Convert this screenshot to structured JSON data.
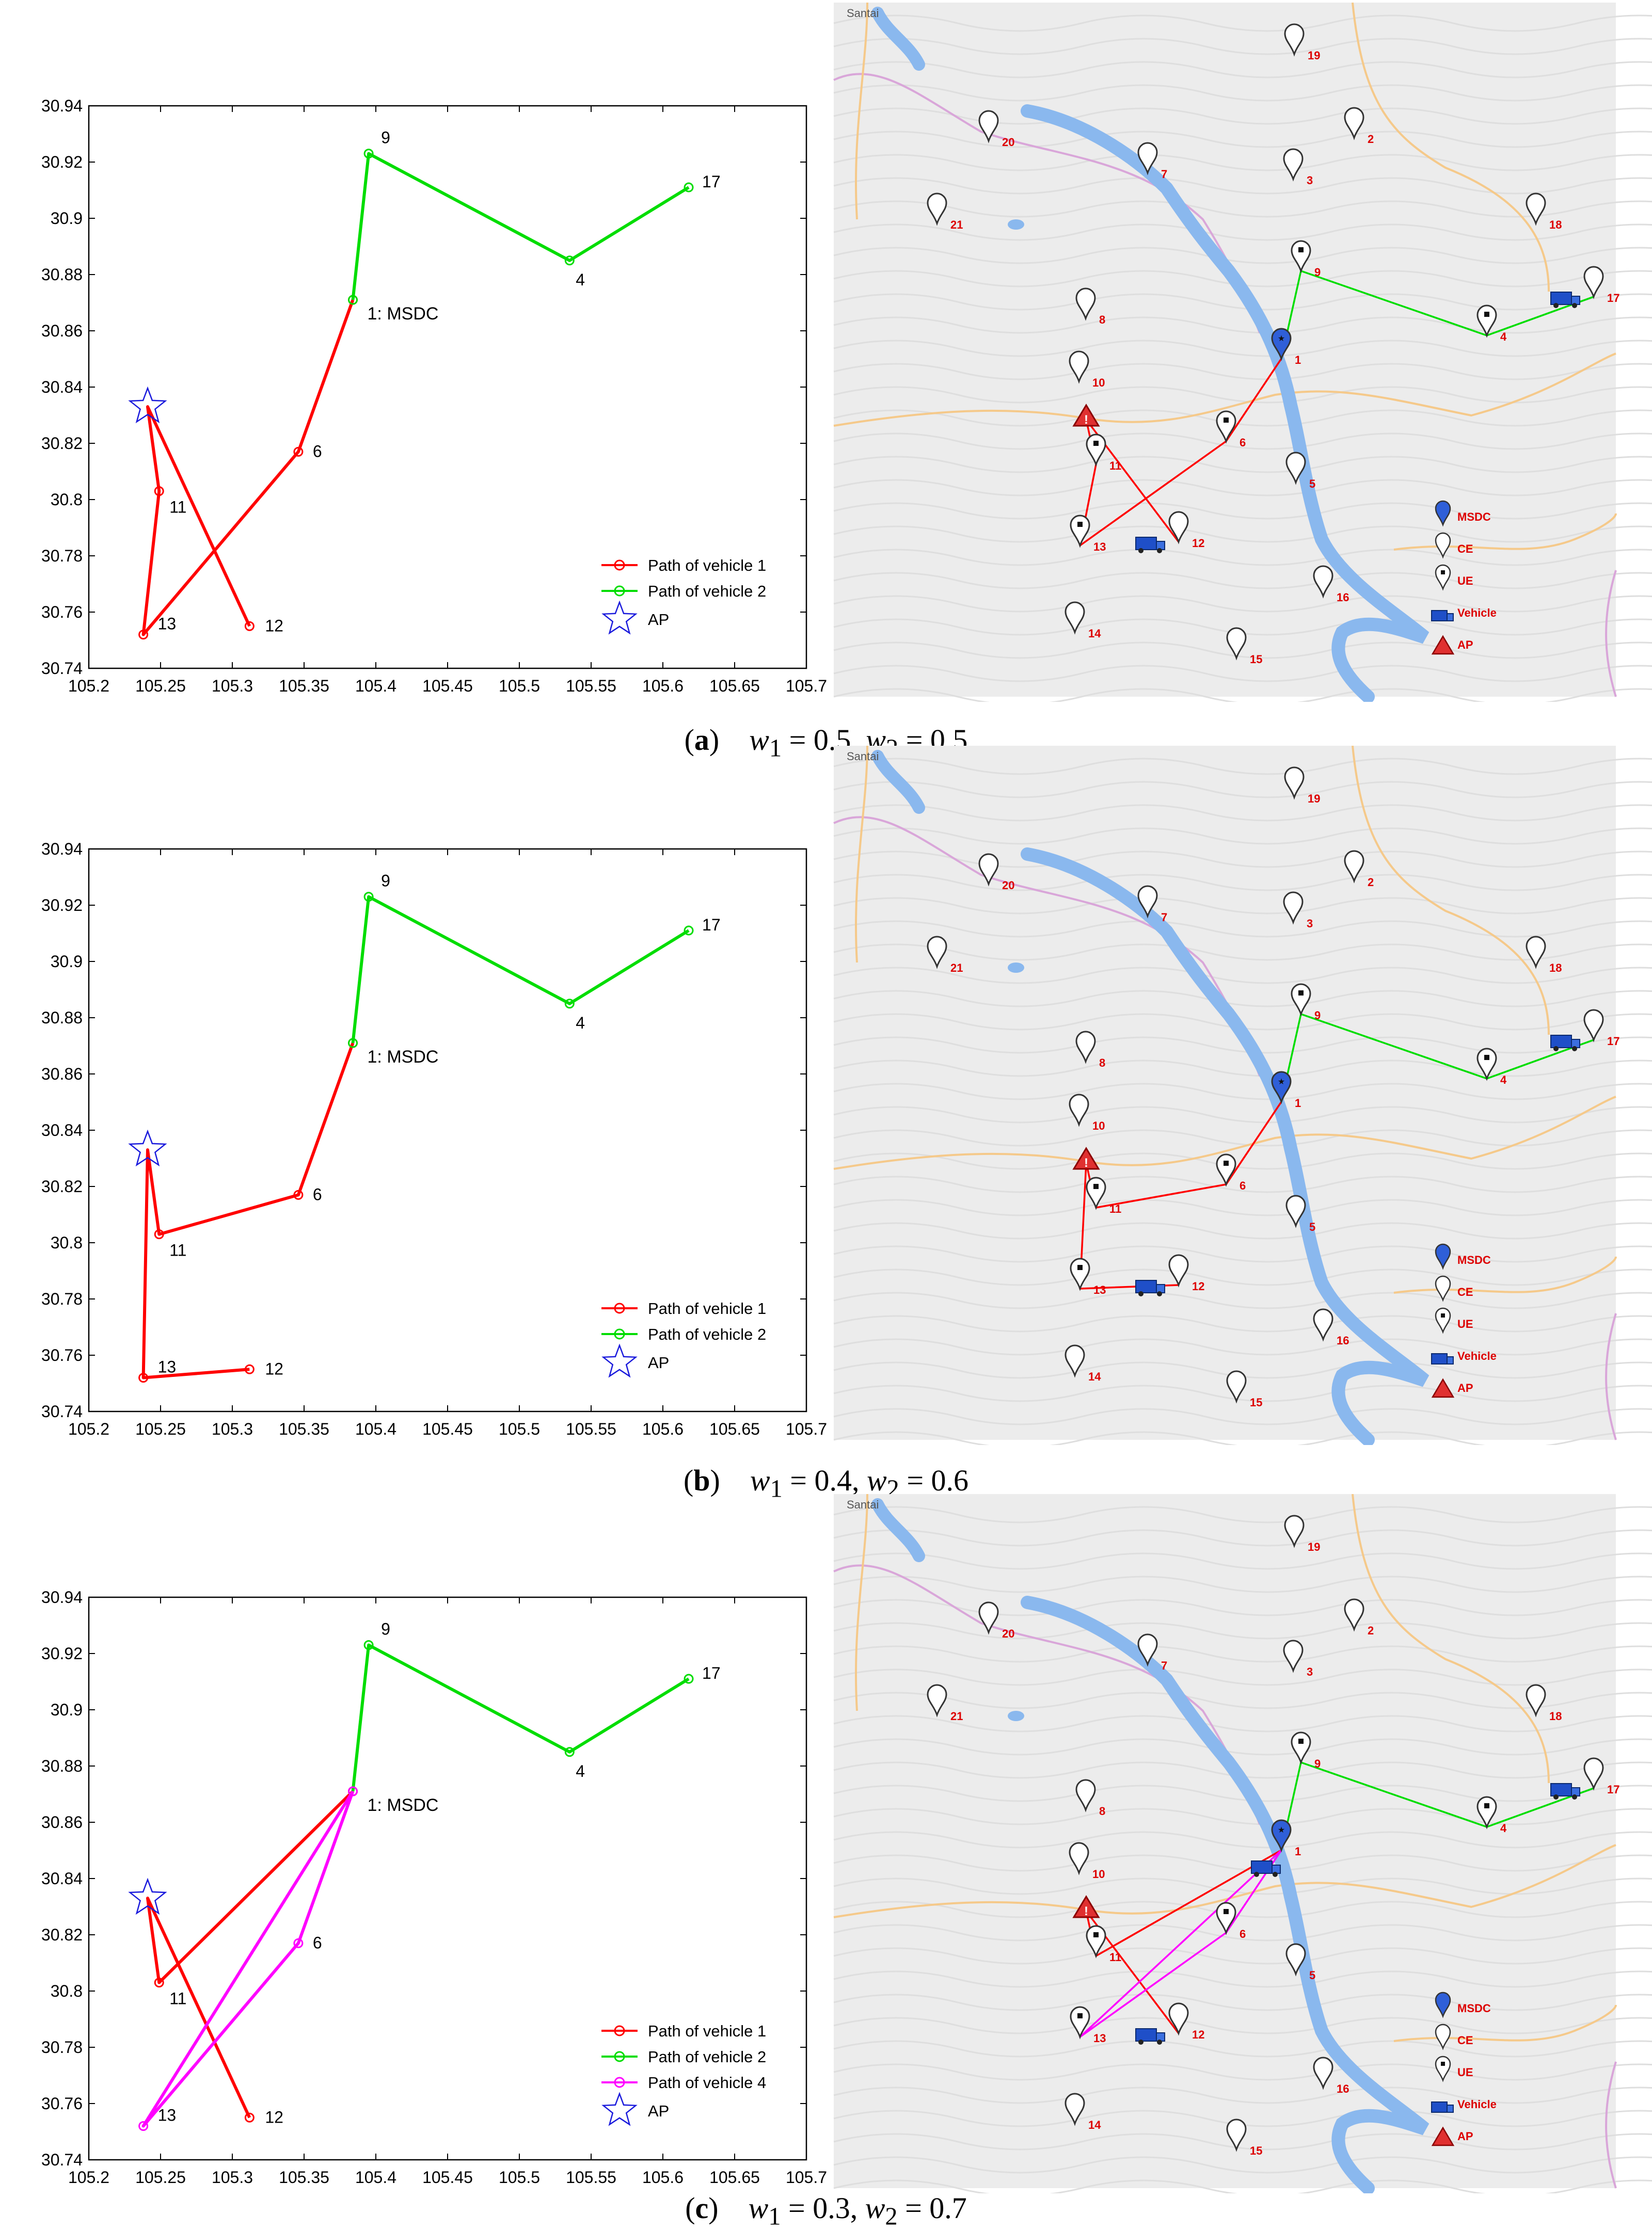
{
  "colors": {
    "vehicle1": "#ff0000",
    "vehicle2": "#00dd00",
    "vehicle4": "#ff00ff",
    "ap": "#1a1adc",
    "mapBg": "#ececec",
    "river": "#8ab8ee",
    "roadOrange": "#f5c98a",
    "roadPurple": "#d9a6d9",
    "labelRed": "#dd0000"
  },
  "chart_data": [
    {
      "type": "line",
      "panel": "a",
      "caption": {
        "letter": "a",
        "w1": "0.5",
        "w2": "0.5"
      },
      "xlim": [
        105.2,
        105.7
      ],
      "ylim": [
        30.74,
        30.94
      ],
      "xticks": [
        "105.2",
        "105.25",
        "105.3",
        "105.35",
        "105.4",
        "105.45",
        "105.5",
        "105.55",
        "105.6",
        "105.65",
        "105.7"
      ],
      "yticks": [
        "30.74",
        "30.76",
        "30.78",
        "30.8",
        "30.82",
        "30.84",
        "30.86",
        "30.88",
        "30.9",
        "30.92",
        "30.94"
      ],
      "nodes": [
        {
          "id": "1",
          "label": "1: MSDC",
          "x": 105.384,
          "y": 30.871
        },
        {
          "id": "4",
          "label": "4",
          "x": 105.535,
          "y": 30.885
        },
        {
          "id": "6",
          "label": "6",
          "x": 105.346,
          "y": 30.817
        },
        {
          "id": "9",
          "label": "9",
          "x": 105.395,
          "y": 30.923
        },
        {
          "id": "11",
          "label": "11",
          "x": 105.249,
          "y": 30.803
        },
        {
          "id": "12",
          "label": "12",
          "x": 105.312,
          "y": 30.755
        },
        {
          "id": "13",
          "label": "13",
          "x": 105.238,
          "y": 30.752
        },
        {
          "id": "17",
          "label": "17",
          "x": 105.618,
          "y": 30.911
        }
      ],
      "ap": {
        "x": 105.241,
        "y": 30.833
      },
      "series": [
        {
          "name": "Path of vehicle 1",
          "color": "#ff0000",
          "path": [
            "1",
            "6",
            "13",
            "11",
            "AP",
            "12"
          ]
        },
        {
          "name": "Path of vehicle 2",
          "color": "#00dd00",
          "path": [
            "1",
            "9",
            "4",
            "17"
          ]
        }
      ],
      "legend": {
        "entries": [
          "Path of vehicle 1",
          "Path of vehicle 2"
        ],
        "ap_label": "AP",
        "position": "bottom-right"
      }
    },
    {
      "type": "line",
      "panel": "b",
      "caption": {
        "letter": "b",
        "w1": "0.4",
        "w2": "0.6"
      },
      "xlim": [
        105.2,
        105.7
      ],
      "ylim": [
        30.74,
        30.94
      ],
      "xticks": [
        "105.2",
        "105.25",
        "105.3",
        "105.35",
        "105.4",
        "105.45",
        "105.5",
        "105.55",
        "105.6",
        "105.65",
        "105.7"
      ],
      "yticks": [
        "30.74",
        "30.76",
        "30.78",
        "30.8",
        "30.82",
        "30.84",
        "30.86",
        "30.88",
        "30.9",
        "30.92",
        "30.94"
      ],
      "nodes": [
        {
          "id": "1",
          "label": "1: MSDC",
          "x": 105.384,
          "y": 30.871
        },
        {
          "id": "4",
          "label": "4",
          "x": 105.535,
          "y": 30.885
        },
        {
          "id": "6",
          "label": "6",
          "x": 105.346,
          "y": 30.817
        },
        {
          "id": "9",
          "label": "9",
          "x": 105.395,
          "y": 30.923
        },
        {
          "id": "11",
          "label": "11",
          "x": 105.249,
          "y": 30.803
        },
        {
          "id": "12",
          "label": "12",
          "x": 105.312,
          "y": 30.755
        },
        {
          "id": "13",
          "label": "13",
          "x": 105.238,
          "y": 30.752
        },
        {
          "id": "17",
          "label": "17",
          "x": 105.618,
          "y": 30.911
        }
      ],
      "ap": {
        "x": 105.241,
        "y": 30.833
      },
      "series": [
        {
          "name": "Path of vehicle 1",
          "color": "#ff0000",
          "path": [
            "1",
            "6",
            "11",
            "AP",
            "13",
            "12"
          ]
        },
        {
          "name": "Path of vehicle 2",
          "color": "#00dd00",
          "path": [
            "1",
            "9",
            "4",
            "17"
          ]
        }
      ],
      "legend": {
        "entries": [
          "Path of vehicle 1",
          "Path of vehicle 2"
        ],
        "ap_label": "AP",
        "position": "bottom-right"
      }
    },
    {
      "type": "line",
      "panel": "c",
      "caption": {
        "letter": "c",
        "w1": "0.3",
        "w2": "0.7"
      },
      "xlim": [
        105.2,
        105.7
      ],
      "ylim": [
        30.74,
        30.94
      ],
      "xticks": [
        "105.2",
        "105.25",
        "105.3",
        "105.35",
        "105.4",
        "105.45",
        "105.5",
        "105.55",
        "105.6",
        "105.65",
        "105.7"
      ],
      "yticks": [
        "30.74",
        "30.76",
        "30.78",
        "30.8",
        "30.82",
        "30.84",
        "30.86",
        "30.88",
        "30.9",
        "30.92",
        "30.94"
      ],
      "nodes": [
        {
          "id": "1",
          "label": "1: MSDC",
          "x": 105.384,
          "y": 30.871
        },
        {
          "id": "4",
          "label": "4",
          "x": 105.535,
          "y": 30.885
        },
        {
          "id": "6",
          "label": "6",
          "x": 105.346,
          "y": 30.817
        },
        {
          "id": "9",
          "label": "9",
          "x": 105.395,
          "y": 30.923
        },
        {
          "id": "11",
          "label": "11",
          "x": 105.249,
          "y": 30.803
        },
        {
          "id": "12",
          "label": "12",
          "x": 105.312,
          "y": 30.755
        },
        {
          "id": "13",
          "label": "13",
          "x": 105.238,
          "y": 30.752
        },
        {
          "id": "17",
          "label": "17",
          "x": 105.618,
          "y": 30.911
        }
      ],
      "ap": {
        "x": 105.241,
        "y": 30.833
      },
      "series": [
        {
          "name": "Path of vehicle 1",
          "color": "#ff0000",
          "path": [
            "1",
            "11",
            "AP",
            "12"
          ]
        },
        {
          "name": "Path of vehicle 2",
          "color": "#00dd00",
          "path": [
            "1",
            "9",
            "4",
            "17"
          ]
        },
        {
          "name": "Path of vehicle 4",
          "color": "#ff00ff",
          "path": [
            "1",
            "6",
            "13",
            "1"
          ]
        }
      ],
      "legend": {
        "entries": [
          "Path of vehicle 1",
          "Path of vehicle 2",
          "Path of vehicle 4"
        ],
        "ap_label": "AP",
        "position": "bottom-right"
      }
    }
  ],
  "maps": [
    {
      "panel": "a",
      "town_label": "Santai",
      "pin_labels": [
        "1",
        "2",
        "3",
        "4",
        "5",
        "6",
        "7",
        "8",
        "9",
        "10",
        "11",
        "12",
        "13",
        "14",
        "15",
        "16",
        "17",
        "18",
        "19",
        "20",
        "21"
      ],
      "ue_pins": [
        "4",
        "6",
        "9",
        "11",
        "13"
      ],
      "vehicles_at": [
        "12",
        "17"
      ],
      "ap_at": "10",
      "routes": [
        {
          "color": "#ff0000",
          "path": [
            "1",
            "6",
            "13",
            "11",
            "AP",
            "12"
          ]
        },
        {
          "color": "#00dd00",
          "path": [
            "1",
            "9",
            "4",
            "17"
          ]
        }
      ],
      "legend": [
        "MSDC",
        "CE",
        "UE",
        "Vehicle",
        "AP"
      ]
    },
    {
      "panel": "b",
      "town_label": "Santai",
      "pin_labels": [
        "1",
        "2",
        "3",
        "4",
        "5",
        "6",
        "7",
        "8",
        "9",
        "10",
        "11",
        "12",
        "13",
        "14",
        "15",
        "16",
        "17",
        "18",
        "19",
        "20",
        "21"
      ],
      "ue_pins": [
        "4",
        "6",
        "9",
        "11",
        "13"
      ],
      "vehicles_at": [
        "12",
        "17"
      ],
      "ap_at": "10",
      "routes": [
        {
          "color": "#ff0000",
          "path": [
            "1",
            "6",
            "11",
            "AP",
            "13",
            "12"
          ]
        },
        {
          "color": "#00dd00",
          "path": [
            "1",
            "9",
            "4",
            "17"
          ]
        }
      ],
      "legend": [
        "MSDC",
        "CE",
        "UE",
        "Vehicle",
        "AP"
      ]
    },
    {
      "panel": "c",
      "town_label": "Santai",
      "pin_labels": [
        "1",
        "2",
        "3",
        "4",
        "5",
        "6",
        "7",
        "8",
        "9",
        "10",
        "11",
        "12",
        "13",
        "14",
        "15",
        "16",
        "17",
        "18",
        "19",
        "20",
        "21"
      ],
      "ue_pins": [
        "4",
        "6",
        "9",
        "11",
        "13"
      ],
      "vehicles_at": [
        "12",
        "17",
        "1"
      ],
      "ap_at": "10",
      "routes": [
        {
          "color": "#ff0000",
          "path": [
            "1",
            "11",
            "AP",
            "12"
          ]
        },
        {
          "color": "#00dd00",
          "path": [
            "1",
            "9",
            "4",
            "17"
          ]
        },
        {
          "color": "#ff00ff",
          "path": [
            "1",
            "6",
            "13",
            "1"
          ]
        }
      ],
      "legend": [
        "MSDC",
        "CE",
        "UE",
        "Vehicle",
        "AP"
      ]
    }
  ]
}
